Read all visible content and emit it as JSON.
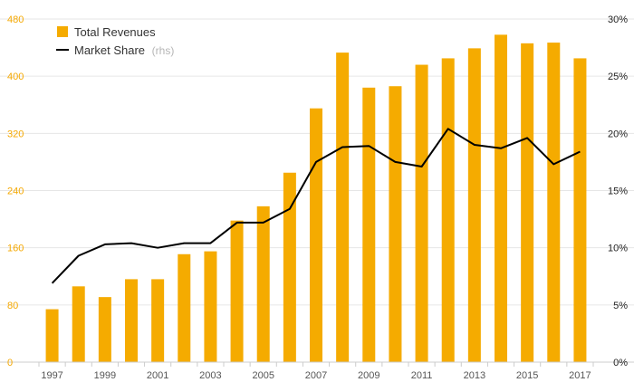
{
  "chart_data": {
    "type": "bar+line",
    "title": "",
    "colors": {
      "bar": "#f5ab00",
      "line": "#000000",
      "left_axis_text": "#f5a800",
      "grid": "#e6e6e6"
    },
    "years": [
      "1997",
      "1998",
      "1999",
      "2000",
      "2001",
      "2002",
      "2003",
      "2004",
      "2005",
      "2006",
      "2007",
      "2008",
      "2009",
      "2010",
      "2011",
      "2012",
      "2013",
      "2014",
      "2015",
      "2016",
      "2017"
    ],
    "x_tick_labels": [
      "1997",
      "",
      "1999",
      "",
      "2001",
      "",
      "2003",
      "",
      "2005",
      "",
      "2007",
      "",
      "2009",
      "",
      "2011",
      "",
      "2013",
      "",
      "2015",
      "",
      "2017"
    ],
    "series": [
      {
        "name": "Total Revenues",
        "type": "bar",
        "axis": "left",
        "values": [
          74,
          106,
          91,
          116,
          116,
          151,
          155,
          198,
          218,
          265,
          355,
          433,
          384,
          386,
          416,
          425,
          439,
          458,
          446,
          447,
          425
        ]
      },
      {
        "name": "Market Share",
        "type": "line",
        "axis": "right",
        "values": [
          6.9,
          9.3,
          10.3,
          10.4,
          10.0,
          10.4,
          10.4,
          12.2,
          12.2,
          13.4,
          17.5,
          18.8,
          18.9,
          17.5,
          17.1,
          20.4,
          19.0,
          18.7,
          19.6,
          17.3,
          18.4
        ]
      }
    ],
    "y_left": {
      "min": 0,
      "max": 480,
      "ticks": [
        "0",
        "80",
        "160",
        "240",
        "320",
        "400",
        "480"
      ],
      "values": [
        0,
        80,
        160,
        240,
        320,
        400,
        480
      ]
    },
    "y_right": {
      "min": 0,
      "max": 30,
      "ticks": [
        "0%",
        "5%",
        "10%",
        "15%",
        "20%",
        "25%",
        "30%"
      ],
      "values": [
        0,
        5,
        10,
        15,
        20,
        25,
        30
      ]
    },
    "legend": {
      "position": "top-left",
      "items": [
        {
          "label": "Total Revenues",
          "suffix": ""
        },
        {
          "label": "Market Share",
          "suffix": "(rhs)"
        }
      ]
    }
  }
}
